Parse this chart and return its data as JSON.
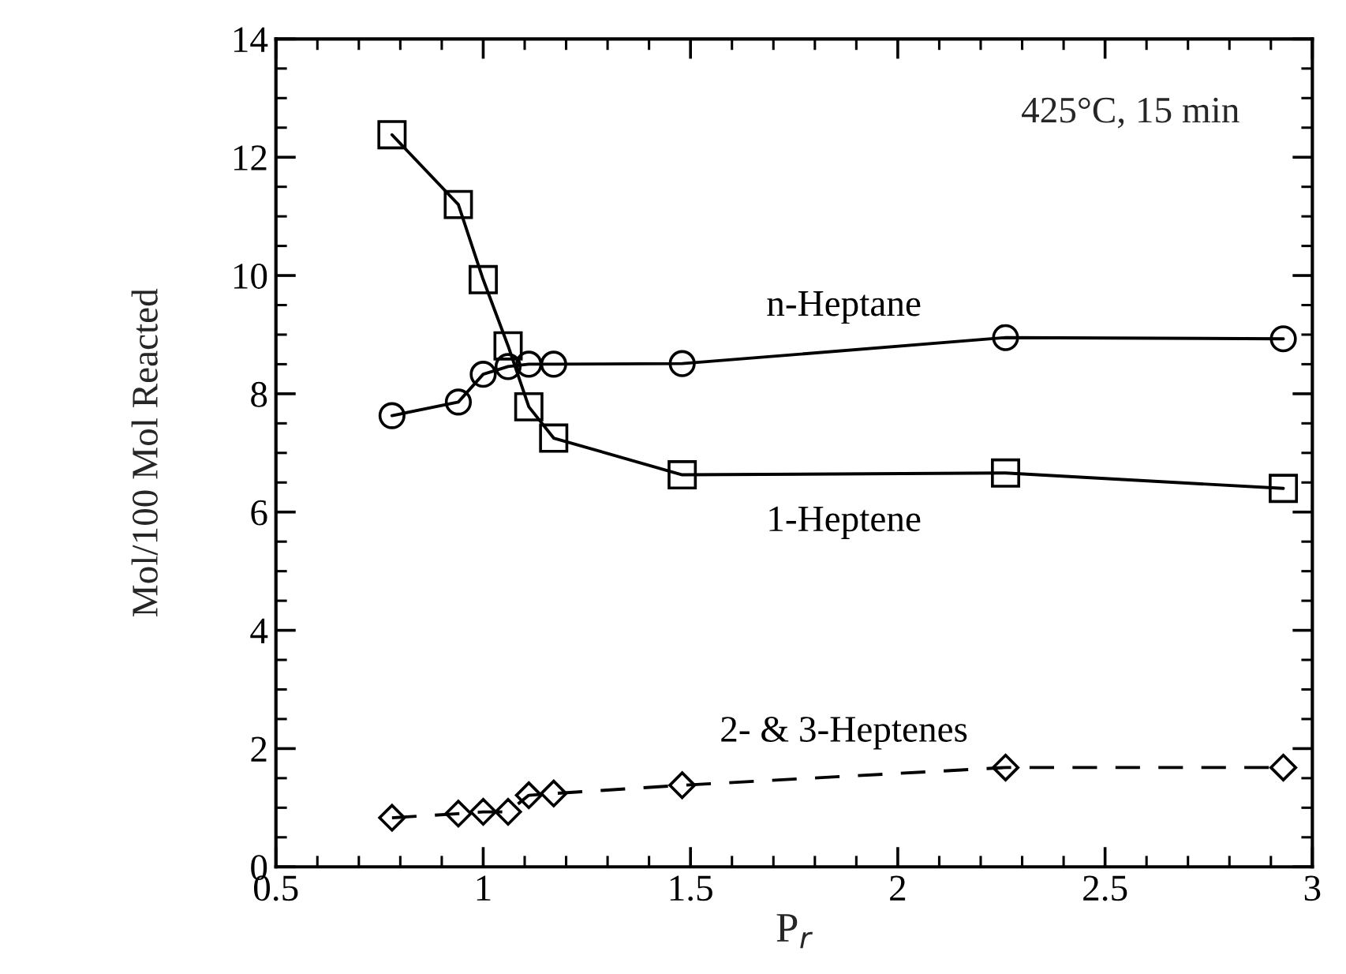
{
  "chart_data": {
    "type": "line",
    "xlabel": "P$_{r}$",
    "ylabel": "Mol/100 Mol Reacted",
    "annotations": [
      "425°C, 15 min"
    ],
    "xlim": [
      0.5,
      3
    ],
    "xticks": [
      0.5,
      1,
      1.5,
      2,
      2.5,
      3
    ],
    "ylim": [
      0,
      14
    ],
    "yticks": [
      0,
      2,
      4,
      6,
      8,
      10,
      12,
      14
    ],
    "grid": false,
    "legend": false,
    "series": [
      {
        "name": "n-Heptane",
        "color": "#000000",
        "marker": "circle",
        "line_style": "solid",
        "x": [
          0.78,
          0.94,
          1.0,
          1.06,
          1.11,
          1.17,
          1.48,
          2.26,
          2.93
        ],
        "values": [
          7.63,
          7.86,
          8.33,
          8.46,
          8.5,
          8.5,
          8.51,
          8.95,
          8.93
        ]
      },
      {
        "name": "1-Heptene",
        "color": "#000000",
        "marker": "square",
        "line_style": "solid",
        "x": [
          0.78,
          0.94,
          1.0,
          1.06,
          1.11,
          1.17,
          1.48,
          2.26,
          2.93
        ],
        "values": [
          12.38,
          11.2,
          9.93,
          8.81,
          7.78,
          7.25,
          6.63,
          6.66,
          6.4
        ]
      },
      {
        "name": "2- & 3-Heptenes",
        "color": "#000000",
        "marker": "diamond",
        "line_style": "dashed",
        "x": [
          0.78,
          0.94,
          1.0,
          1.06,
          1.11,
          1.17,
          1.48,
          2.26,
          2.93
        ],
        "values": [
          0.83,
          0.9,
          0.93,
          0.93,
          1.21,
          1.24,
          1.38,
          1.68,
          1.68
        ]
      }
    ]
  }
}
